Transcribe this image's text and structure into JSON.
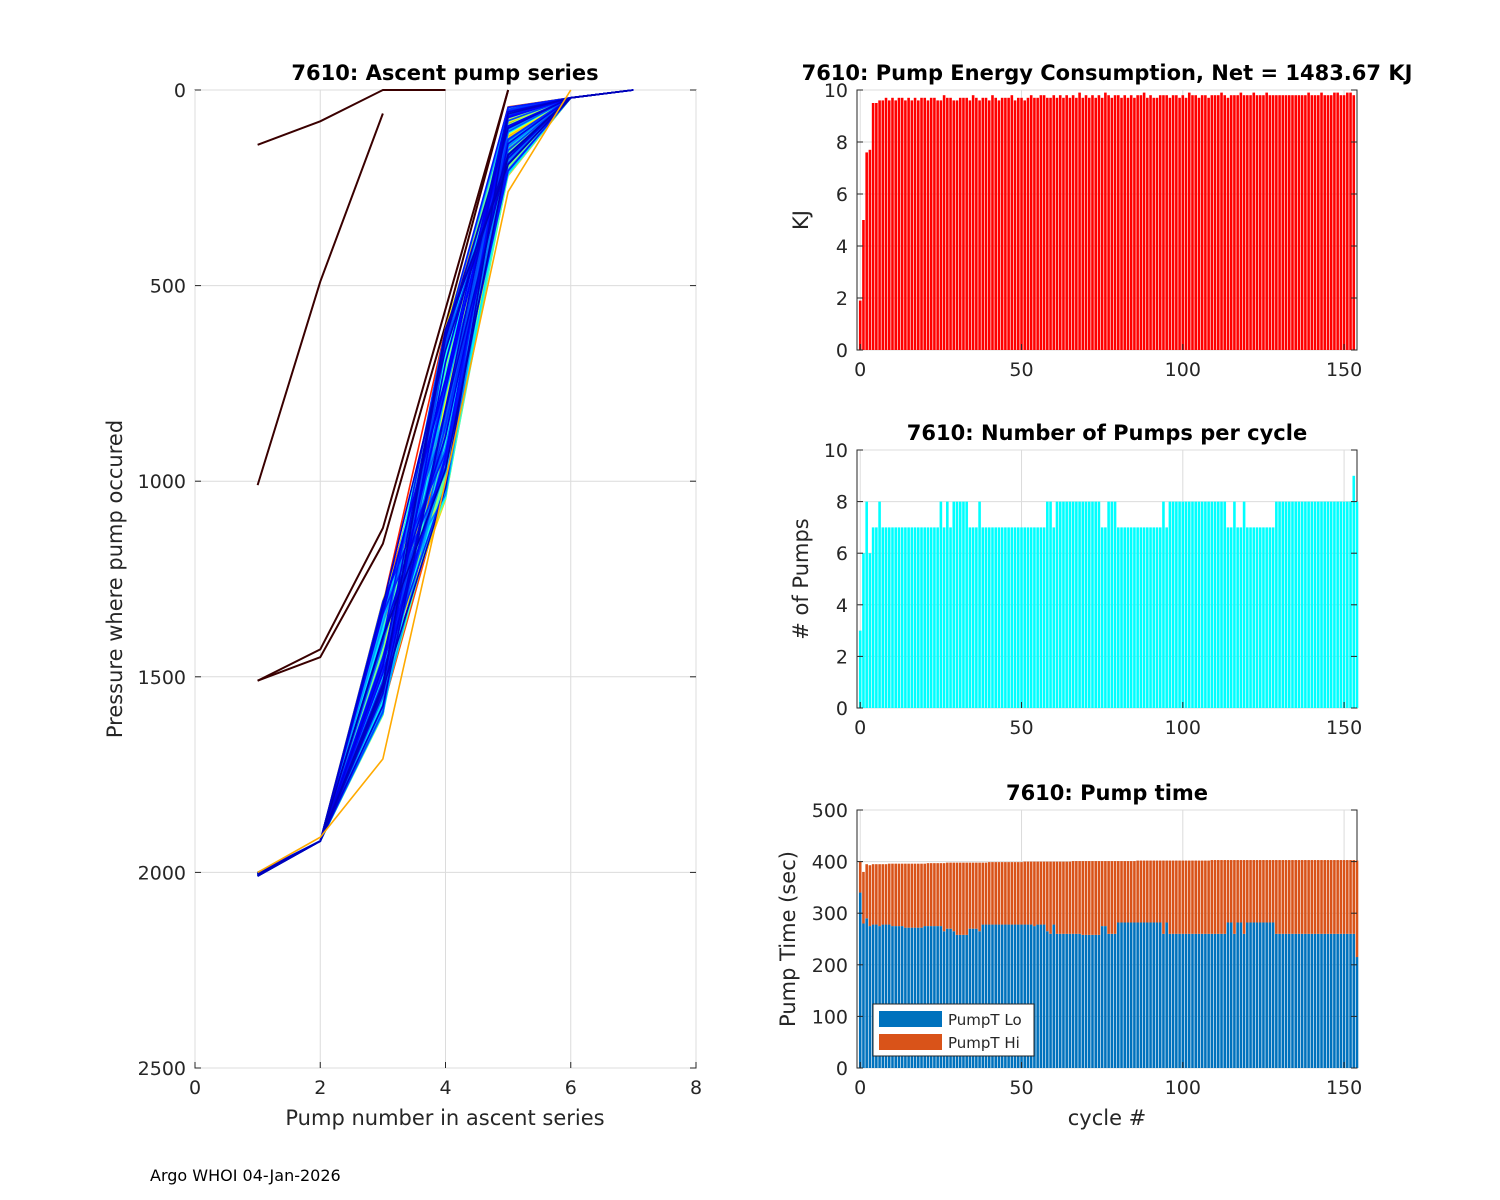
{
  "footer": "Argo WHOI 04-Jan-2026",
  "chart_data": [
    {
      "id": "ascent",
      "type": "line",
      "title": "7610: Ascent pump series",
      "xlabel": "Pump number in ascent series",
      "ylabel": "Pressure where pump occured",
      "xlim": [
        0,
        8
      ],
      "ylim": [
        0,
        2500
      ],
      "y_reversed": true,
      "grid": true,
      "xticks": [
        0,
        2,
        4,
        6,
        8
      ],
      "yticks": [
        0,
        500,
        1000,
        1500,
        2000,
        2500
      ],
      "series_count": 154,
      "colormap": "jet (early cycles dark red, late cycles dark blue)",
      "series_examples": [
        {
          "name": "cycle 1",
          "x": [
            1,
            2,
            3,
            4
          ],
          "y": [
            140,
            80,
            0,
            0
          ]
        },
        {
          "name": "cycle 2",
          "x": [
            1,
            2,
            3
          ],
          "y": [
            1010,
            490,
            60
          ]
        },
        {
          "name": "cycle 3",
          "x": [
            1,
            2,
            3,
            4,
            5
          ],
          "y": [
            1510,
            1430,
            1120,
            560,
            0
          ]
        },
        {
          "name": "cycle 4",
          "x": [
            1,
            2,
            3,
            4,
            5
          ],
          "y": [
            1510,
            1450,
            1160,
            600,
            0
          ]
        },
        {
          "name": "typical",
          "x": [
            1,
            2,
            3,
            4,
            5,
            6,
            7
          ],
          "y": [
            2010,
            1920,
            1500,
            900,
            180,
            20,
            0
          ]
        },
        {
          "name": "outlier",
          "x": [
            1,
            2,
            3,
            4,
            5,
            6
          ],
          "y": [
            2000,
            1910,
            1710,
            1000,
            260,
            0
          ]
        }
      ]
    },
    {
      "id": "energy",
      "type": "bar",
      "title": "7610: Pump Energy Consumption,  Net = 1483.67 KJ",
      "xlabel": "",
      "ylabel": "KJ",
      "xlim": [
        -1,
        154
      ],
      "ylim": [
        0,
        10
      ],
      "grid": true,
      "xticks": [
        0,
        50,
        100,
        150
      ],
      "yticks": [
        0,
        2,
        4,
        6,
        8,
        10
      ],
      "color": "#ff0000",
      "values": [
        1.9,
        5.0,
        7.6,
        7.7,
        9.5,
        9.5,
        9.6,
        9.6,
        9.7,
        9.6,
        9.7,
        9.6,
        9.7,
        9.7,
        9.6,
        9.7,
        9.6,
        9.7,
        9.6,
        9.7,
        9.7,
        9.6,
        9.7,
        9.7,
        9.6,
        9.6,
        9.8,
        9.7,
        9.7,
        9.6,
        9.6,
        9.7,
        9.7,
        9.7,
        9.6,
        9.8,
        9.7,
        9.6,
        9.7,
        9.7,
        9.6,
        9.8,
        9.7,
        9.6,
        9.7,
        9.7,
        9.7,
        9.8,
        9.6,
        9.7,
        9.7,
        9.6,
        9.7,
        9.8,
        9.7,
        9.7,
        9.8,
        9.8,
        9.7,
        9.7,
        9.8,
        9.7,
        9.8,
        9.7,
        9.8,
        9.7,
        9.8,
        9.7,
        9.9,
        9.7,
        9.8,
        9.7,
        9.8,
        9.7,
        9.8,
        9.7,
        9.9,
        9.8,
        9.7,
        9.8,
        9.8,
        9.7,
        9.8,
        9.7,
        9.8,
        9.7,
        9.8,
        9.8,
        9.9,
        9.7,
        9.8,
        9.7,
        9.7,
        9.8,
        9.8,
        9.8,
        9.7,
        9.8,
        9.8,
        9.7,
        9.8,
        9.7,
        9.9,
        9.8,
        9.8,
        9.7,
        9.8,
        9.8,
        9.7,
        9.8,
        9.8,
        9.8,
        9.9,
        9.8,
        9.7,
        9.8,
        9.8,
        9.8,
        9.9,
        9.8,
        9.8,
        9.8,
        9.9,
        9.8,
        9.8,
        9.8,
        9.9,
        9.8,
        9.8,
        9.8,
        9.8,
        9.8,
        9.8,
        9.8,
        9.8,
        9.8,
        9.8,
        9.8,
        9.8,
        9.9,
        9.8,
        9.8,
        9.8,
        9.9,
        9.8,
        9.8,
        9.8,
        9.9,
        9.9,
        9.8,
        9.8,
        9.9,
        9.9,
        9.8
      ]
    },
    {
      "id": "npumps",
      "type": "bar",
      "title": "7610: Number of Pumps per cycle",
      "xlabel": "",
      "ylabel": "# of Pumps",
      "xlim": [
        -1,
        154
      ],
      "ylim": [
        0,
        10
      ],
      "grid": true,
      "xticks": [
        0,
        50,
        100,
        150
      ],
      "yticks": [
        0,
        2,
        4,
        6,
        8,
        10
      ],
      "color": "#00ffff",
      "values": [
        3,
        6,
        8,
        6,
        7,
        7,
        8,
        7,
        7,
        7,
        7,
        7,
        7,
        7,
        7,
        7,
        7,
        7,
        7,
        7,
        7,
        7,
        7,
        7,
        7,
        8,
        7,
        8,
        7,
        8,
        8,
        8,
        8,
        8,
        7,
        7,
        7,
        8,
        7,
        7,
        7,
        7,
        7,
        7,
        7,
        7,
        7,
        7,
        7,
        7,
        7,
        7,
        7,
        7,
        7,
        7,
        7,
        7,
        8,
        8,
        7,
        8,
        8,
        8,
        8,
        8,
        8,
        8,
        8,
        8,
        8,
        8,
        8,
        8,
        8,
        7,
        7,
        8,
        8,
        8,
        7,
        7,
        7,
        7,
        7,
        7,
        7,
        7,
        7,
        7,
        7,
        7,
        7,
        7,
        8,
        7,
        8,
        8,
        8,
        8,
        8,
        8,
        8,
        8,
        8,
        8,
        8,
        8,
        8,
        8,
        8,
        8,
        8,
        8,
        7,
        7,
        8,
        7,
        7,
        8,
        7,
        7,
        7,
        7,
        7,
        7,
        7,
        7,
        7,
        8,
        8,
        8,
        8,
        8,
        8,
        8,
        8,
        8,
        8,
        8,
        8,
        8,
        8,
        8,
        8,
        8,
        8,
        8,
        8,
        8,
        8,
        8,
        8,
        9,
        8
      ]
    },
    {
      "id": "pumptime",
      "type": "bar",
      "stacked": true,
      "title": "7610: Pump time",
      "xlabel": "cycle #",
      "ylabel": "Pump Time (sec)",
      "xlim": [
        -1,
        154
      ],
      "ylim": [
        0,
        500
      ],
      "grid": true,
      "xticks": [
        0,
        50,
        100,
        150
      ],
      "yticks": [
        0,
        100,
        200,
        300,
        400,
        500
      ],
      "legend_position": "bottom-left",
      "series": [
        {
          "name": "PumpT Lo",
          "color": "#0072bd",
          "values": [
            340,
            280,
            290,
            275,
            278,
            278,
            275,
            278,
            278,
            278,
            275,
            275,
            275,
            275,
            272,
            272,
            272,
            272,
            272,
            272,
            275,
            275,
            275,
            275,
            275,
            275,
            265,
            270,
            270,
            265,
            258,
            258,
            258,
            258,
            270,
            270,
            270,
            265,
            278,
            278,
            278,
            278,
            278,
            278,
            278,
            278,
            278,
            278,
            278,
            278,
            278,
            278,
            278,
            278,
            275,
            278,
            278,
            278,
            265,
            260,
            278,
            260,
            260,
            260,
            260,
            260,
            260,
            260,
            260,
            258,
            258,
            258,
            258,
            258,
            258,
            275,
            275,
            260,
            260,
            260,
            282,
            282,
            282,
            282,
            282,
            282,
            282,
            282,
            282,
            282,
            282,
            282,
            282,
            282,
            260,
            282,
            260,
            260,
            260,
            260,
            260,
            260,
            260,
            260,
            260,
            260,
            260,
            260,
            260,
            260,
            260,
            260,
            260,
            260,
            282,
            282,
            260,
            282,
            282,
            260,
            282,
            282,
            282,
            282,
            282,
            282,
            282,
            282,
            282,
            260,
            260,
            260,
            260,
            260,
            260,
            260,
            260,
            260,
            260,
            260,
            260,
            260,
            260,
            260,
            260,
            260,
            260,
            260,
            260,
            260,
            260,
            260,
            260,
            260,
            215
          ]
        },
        {
          "name": "PumpT Hi",
          "color": "#d95319",
          "values": [
            60,
            100,
            105,
            118,
            117,
            117,
            120,
            117,
            117,
            118,
            121,
            121,
            121,
            121,
            124,
            124,
            124,
            124,
            124,
            124,
            121,
            122,
            122,
            122,
            122,
            122,
            132,
            128,
            128,
            133,
            140,
            140,
            140,
            140,
            128,
            128,
            128,
            133,
            120,
            120,
            121,
            121,
            121,
            121,
            121,
            121,
            121,
            121,
            121,
            121,
            121,
            122,
            122,
            122,
            125,
            122,
            122,
            122,
            135,
            140,
            122,
            140,
            140,
            140,
            140,
            140,
            141,
            141,
            141,
            143,
            143,
            143,
            143,
            143,
            143,
            126,
            126,
            141,
            141,
            141,
            119,
            119,
            119,
            119,
            119,
            119,
            120,
            120,
            120,
            120,
            120,
            120,
            120,
            120,
            142,
            120,
            142,
            142,
            142,
            142,
            142,
            142,
            142,
            142,
            142,
            142,
            142,
            142,
            142,
            143,
            143,
            143,
            143,
            143,
            121,
            121,
            143,
            121,
            121,
            143,
            121,
            121,
            121,
            121,
            121,
            121,
            121,
            121,
            121,
            143,
            143,
            143,
            143,
            143,
            143,
            143,
            143,
            143,
            143,
            143,
            143,
            143,
            143,
            143,
            143,
            143,
            143,
            143,
            143,
            143,
            143,
            143,
            143,
            143,
            187
          ]
        }
      ]
    }
  ]
}
